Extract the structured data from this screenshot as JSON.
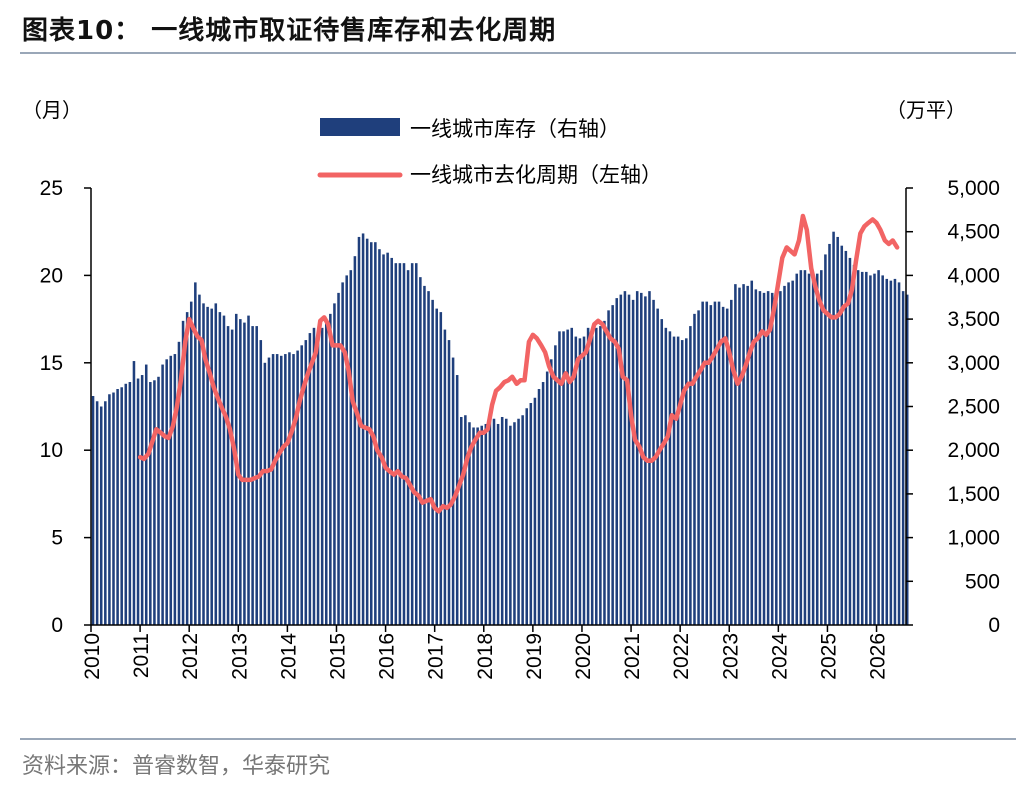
{
  "title": "图表10：  一线城市取证待售库存和去化周期",
  "source": "资料来源：普睿数智，华泰研究",
  "chart_data": {
    "type": "bar+line",
    "left_unit": "（月）",
    "right_unit": "（万平）",
    "left_axis": {
      "ylim": [
        0,
        25
      ],
      "ticks": [
        "0",
        "5",
        "10",
        "15",
        "20",
        "25"
      ]
    },
    "right_axis": {
      "ylim": [
        0,
        5000
      ],
      "ticks": [
        "0",
        "500",
        "1,000",
        "1,500",
        "2,000",
        "2,500",
        "3,000",
        "3,500",
        "4,000",
        "4,500",
        "5,000"
      ]
    },
    "x_axis": {
      "start": 2010.0,
      "end": 2026.6,
      "tick_labels": [
        "2010",
        "2011",
        "2012",
        "2013",
        "2014",
        "2015",
        "2016",
        "2017",
        "2018",
        "2019",
        "2020",
        "2021",
        "2022",
        "2023",
        "2024",
        "2025",
        "2026"
      ]
    },
    "grid": false,
    "legend_position": "top-center",
    "colors": {
      "bars": "#1f3f7c",
      "line": "#f26464"
    },
    "series": [
      {
        "name": "一线城市库存（右轴）",
        "axis": "right",
        "type": "bar",
        "x_start": 2010.0,
        "step_months": 1,
        "values": [
          2620,
          2560,
          2500,
          2560,
          2640,
          2660,
          2700,
          2720,
          2760,
          2780,
          3020,
          2820,
          2860,
          2980,
          2780,
          2800,
          2840,
          2980,
          3040,
          3080,
          3100,
          3240,
          3480,
          3580,
          3700,
          3920,
          3780,
          3680,
          3640,
          3620,
          3680,
          3580,
          3540,
          3420,
          3380,
          3560,
          3500,
          3460,
          3540,
          3420,
          3420,
          3260,
          3000,
          3060,
          3100,
          3100,
          3080,
          3100,
          3120,
          3100,
          3140,
          3200,
          3260,
          3340,
          3400,
          3340,
          3400,
          3480,
          3560,
          3680,
          3800,
          3920,
          4000,
          4060,
          4220,
          4440,
          4480,
          4420,
          4380,
          4380,
          4300,
          4240,
          4260,
          4200,
          4140,
          4140,
          4140,
          4060,
          4140,
          4140,
          3980,
          3880,
          3820,
          3720,
          3620,
          3580,
          3380,
          3260,
          3060,
          2860,
          2380,
          2400,
          2320,
          2260,
          2260,
          2280,
          2300,
          2340,
          2360,
          2300,
          2380,
          2360,
          2280,
          2320,
          2360,
          2400,
          2480,
          2540,
          2600,
          2700,
          2780,
          2900,
          3040,
          3200,
          3360,
          3360,
          3380,
          3400,
          3300,
          3280,
          3300,
          3400,
          3360,
          3400,
          3420,
          3480,
          3600,
          3660,
          3740,
          3780,
          3820,
          3780,
          3720,
          3820,
          3800,
          3760,
          3820,
          3720,
          3620,
          3500,
          3400,
          3360,
          3300,
          3300,
          3260,
          3280,
          3420,
          3560,
          3600,
          3700,
          3700,
          3660,
          3700,
          3700,
          3640,
          3620,
          3720,
          3900,
          3860,
          3900,
          3880,
          3940,
          3840,
          3820,
          3800,
          3820,
          3800,
          3780,
          3820,
          3880,
          3920,
          3940,
          4020,
          4060,
          4060,
          4020,
          3980,
          4020,
          4060,
          4240,
          4360,
          4500,
          4440,
          4340,
          4280,
          4200,
          4120,
          4060,
          4040,
          4040,
          4000,
          4020,
          4060,
          4000,
          3960,
          3940,
          3960,
          3920,
          3820,
          3780
        ]
      },
      {
        "name": "一线城市去化周期（左轴）",
        "axis": "left",
        "type": "line",
        "points": [
          [
            2011.0,
            9.6
          ],
          [
            2011.08,
            9.5
          ],
          [
            2011.17,
            9.8
          ],
          [
            2011.25,
            10.5
          ],
          [
            2011.33,
            11.2
          ],
          [
            2011.42,
            11.0
          ],
          [
            2011.5,
            10.8
          ],
          [
            2011.58,
            10.7
          ],
          [
            2011.67,
            11.4
          ],
          [
            2011.75,
            12.5
          ],
          [
            2011.83,
            14.0
          ],
          [
            2011.92,
            16.2
          ],
          [
            2012.0,
            17.5
          ],
          [
            2012.08,
            17.0
          ],
          [
            2012.17,
            16.5
          ],
          [
            2012.25,
            16.3
          ],
          [
            2012.33,
            15.2
          ],
          [
            2012.42,
            14.4
          ],
          [
            2012.5,
            13.6
          ],
          [
            2012.58,
            13.0
          ],
          [
            2012.67,
            12.4
          ],
          [
            2012.75,
            11.9
          ],
          [
            2012.83,
            11.2
          ],
          [
            2012.92,
            10.0
          ],
          [
            2013.0,
            8.6
          ],
          [
            2013.08,
            8.3
          ],
          [
            2013.17,
            8.3
          ],
          [
            2013.25,
            8.3
          ],
          [
            2013.33,
            8.4
          ],
          [
            2013.42,
            8.5
          ],
          [
            2013.5,
            8.8
          ],
          [
            2013.58,
            8.8
          ],
          [
            2013.67,
            8.9
          ],
          [
            2013.75,
            9.4
          ],
          [
            2013.83,
            9.8
          ],
          [
            2013.92,
            10.2
          ],
          [
            2014.0,
            10.4
          ],
          [
            2014.08,
            11.0
          ],
          [
            2014.17,
            11.8
          ],
          [
            2014.25,
            12.8
          ],
          [
            2014.33,
            13.6
          ],
          [
            2014.42,
            14.4
          ],
          [
            2014.5,
            15.0
          ],
          [
            2014.58,
            15.6
          ],
          [
            2014.67,
            17.4
          ],
          [
            2014.75,
            17.6
          ],
          [
            2014.83,
            17.2
          ],
          [
            2014.92,
            16.0
          ],
          [
            2015.0,
            16.0
          ],
          [
            2015.08,
            16.0
          ],
          [
            2015.17,
            15.6
          ],
          [
            2015.25,
            14.5
          ],
          [
            2015.33,
            12.8
          ],
          [
            2015.42,
            12.1
          ],
          [
            2015.5,
            11.4
          ],
          [
            2015.58,
            11.3
          ],
          [
            2015.67,
            11.2
          ],
          [
            2015.75,
            10.8
          ],
          [
            2015.83,
            10.0
          ],
          [
            2015.92,
            9.6
          ],
          [
            2016.0,
            9.0
          ],
          [
            2016.08,
            8.8
          ],
          [
            2016.17,
            8.6
          ],
          [
            2016.25,
            8.8
          ],
          [
            2016.33,
            8.5
          ],
          [
            2016.42,
            8.4
          ],
          [
            2016.5,
            8.0
          ],
          [
            2016.58,
            7.6
          ],
          [
            2016.67,
            7.4
          ],
          [
            2016.75,
            7.0
          ],
          [
            2016.83,
            7.1
          ],
          [
            2016.92,
            7.2
          ],
          [
            2017.0,
            6.7
          ],
          [
            2017.08,
            6.5
          ],
          [
            2017.17,
            6.8
          ],
          [
            2017.25,
            6.7
          ],
          [
            2017.33,
            6.9
          ],
          [
            2017.42,
            7.4
          ],
          [
            2017.5,
            8.0
          ],
          [
            2017.58,
            8.6
          ],
          [
            2017.67,
            9.6
          ],
          [
            2017.75,
            10.2
          ],
          [
            2017.83,
            10.6
          ],
          [
            2017.92,
            11.0
          ],
          [
            2018.0,
            11.0
          ],
          [
            2018.08,
            11.2
          ],
          [
            2018.17,
            12.6
          ],
          [
            2018.25,
            13.4
          ],
          [
            2018.33,
            13.6
          ],
          [
            2018.42,
            13.9
          ],
          [
            2018.5,
            14.0
          ],
          [
            2018.58,
            14.2
          ],
          [
            2018.67,
            13.8
          ],
          [
            2018.75,
            14.0
          ],
          [
            2018.83,
            14.0
          ],
          [
            2018.92,
            16.2
          ],
          [
            2019.0,
            16.6
          ],
          [
            2019.08,
            16.4
          ],
          [
            2019.17,
            16.0
          ],
          [
            2019.25,
            15.6
          ],
          [
            2019.33,
            14.8
          ],
          [
            2019.42,
            14.2
          ],
          [
            2019.5,
            14.0
          ],
          [
            2019.58,
            13.8
          ],
          [
            2019.67,
            14.4
          ],
          [
            2019.75,
            13.9
          ],
          [
            2019.83,
            14.2
          ],
          [
            2019.92,
            15.2
          ],
          [
            2020.0,
            15.4
          ],
          [
            2020.08,
            15.6
          ],
          [
            2020.17,
            16.4
          ],
          [
            2020.25,
            17.2
          ],
          [
            2020.33,
            17.4
          ],
          [
            2020.42,
            17.2
          ],
          [
            2020.5,
            16.8
          ],
          [
            2020.58,
            16.4
          ],
          [
            2020.67,
            16.2
          ],
          [
            2020.75,
            15.8
          ],
          [
            2020.83,
            14.2
          ],
          [
            2020.92,
            14.0
          ],
          [
            2021.0,
            12.0
          ],
          [
            2021.08,
            10.6
          ],
          [
            2021.17,
            10.2
          ],
          [
            2021.25,
            9.6
          ],
          [
            2021.33,
            9.4
          ],
          [
            2021.42,
            9.4
          ],
          [
            2021.5,
            9.6
          ],
          [
            2021.58,
            10.0
          ],
          [
            2021.67,
            10.4
          ],
          [
            2021.75,
            10.8
          ],
          [
            2021.83,
            12.0
          ],
          [
            2021.92,
            11.8
          ],
          [
            2022.0,
            12.6
          ],
          [
            2022.08,
            13.4
          ],
          [
            2022.17,
            13.8
          ],
          [
            2022.25,
            13.8
          ],
          [
            2022.33,
            14.2
          ],
          [
            2022.42,
            14.6
          ],
          [
            2022.5,
            15.0
          ],
          [
            2022.58,
            15.0
          ],
          [
            2022.67,
            15.4
          ],
          [
            2022.75,
            15.8
          ],
          [
            2022.83,
            16.2
          ],
          [
            2022.92,
            16.4
          ],
          [
            2023.0,
            15.6
          ],
          [
            2023.08,
            14.6
          ],
          [
            2023.17,
            13.8
          ],
          [
            2023.25,
            14.2
          ],
          [
            2023.33,
            14.8
          ],
          [
            2023.42,
            15.6
          ],
          [
            2023.5,
            16.2
          ],
          [
            2023.58,
            16.4
          ],
          [
            2023.67,
            16.8
          ],
          [
            2023.75,
            16.6
          ],
          [
            2023.83,
            16.9
          ],
          [
            2023.92,
            18.2
          ],
          [
            2024.0,
            19.6
          ],
          [
            2024.08,
            21.0
          ],
          [
            2024.17,
            21.6
          ],
          [
            2024.25,
            21.4
          ],
          [
            2024.33,
            21.2
          ],
          [
            2024.42,
            22.0
          ],
          [
            2024.5,
            23.4
          ],
          [
            2024.58,
            22.6
          ],
          [
            2024.67,
            20.4
          ],
          [
            2024.75,
            19.4
          ],
          [
            2024.83,
            18.6
          ],
          [
            2024.92,
            18.0
          ],
          [
            2025.0,
            17.8
          ],
          [
            2025.08,
            17.6
          ],
          [
            2025.17,
            17.6
          ],
          [
            2025.25,
            17.8
          ],
          [
            2025.33,
            18.2
          ],
          [
            2025.42,
            18.4
          ],
          [
            2025.5,
            19.2
          ],
          [
            2025.58,
            20.8
          ],
          [
            2025.67,
            22.4
          ],
          [
            2025.75,
            22.8
          ],
          [
            2025.83,
            23.0
          ],
          [
            2025.92,
            23.2
          ],
          [
            2026.0,
            23.0
          ],
          [
            2026.08,
            22.6
          ],
          [
            2026.17,
            22.0
          ],
          [
            2026.25,
            21.8
          ],
          [
            2026.33,
            22.0
          ],
          [
            2026.42,
            21.6
          ]
        ]
      }
    ]
  }
}
